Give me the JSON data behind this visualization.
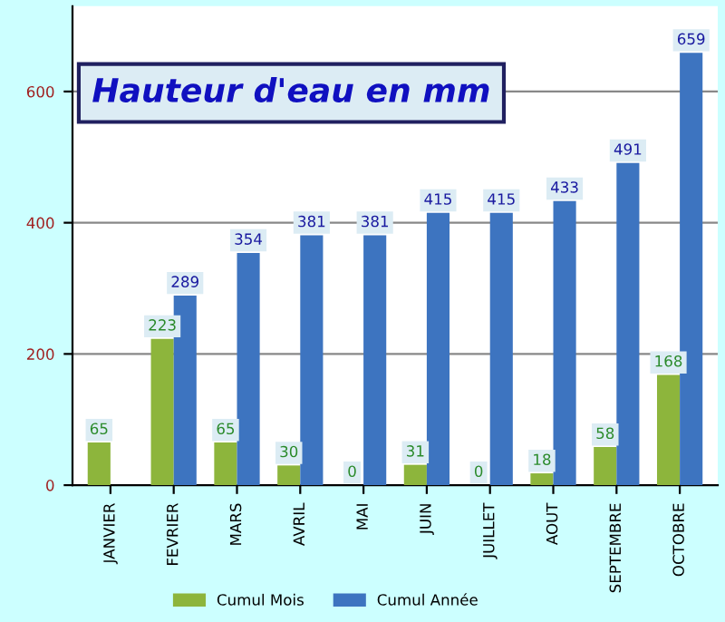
{
  "chart_data": {
    "type": "bar",
    "title": "Hauteur d'eau en mm",
    "categories": [
      "JANVIER",
      "FEVRIER",
      "MARS",
      "AVRIL",
      "MAI",
      "JUIN",
      "JUILLET",
      "AOUT",
      "SEPTEMBRE",
      "OCTOBRE"
    ],
    "series": [
      {
        "name": "Cumul Mois",
        "color": "#8db53c",
        "values": [
          65,
          223,
          65,
          30,
          0,
          31,
          0,
          18,
          58,
          168
        ]
      },
      {
        "name": "Cumul Année",
        "color": "#3d74c0",
        "values": [
          null,
          289,
          354,
          381,
          381,
          415,
          415,
          433,
          491,
          659
        ]
      }
    ],
    "ylim": [
      0,
      730
    ],
    "yticks": [
      0,
      200,
      400,
      600
    ],
    "grid": "y",
    "legend": "bottom",
    "data_labels": true
  }
}
